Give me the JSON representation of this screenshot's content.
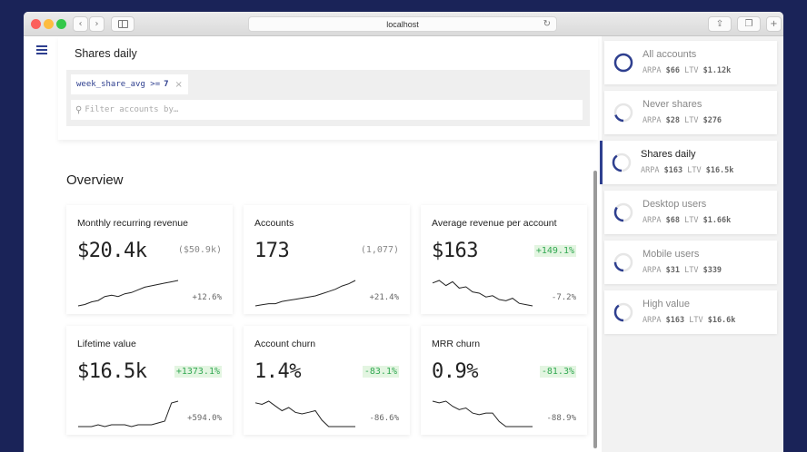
{
  "browser": {
    "url": "localhost",
    "back_icon": "chevron-left-icon",
    "forward_icon": "chevron-right-icon",
    "sidebar_icon": "sidebar-icon",
    "reload_icon": "reload-icon",
    "share_icon": "share-icon",
    "tabs_icon": "tabs-icon",
    "new_tab_icon": "plus-icon"
  },
  "segment_header": {
    "title": "Shares daily",
    "filter_chip": {
      "field": "week_share_avg >=",
      "value": "7",
      "remove": "×"
    },
    "search_placeholder": "Filter accounts by…"
  },
  "overview": {
    "title": "Overview",
    "metrics": [
      {
        "title": "Monthly recurring revenue",
        "value": "$20.4k",
        "compare": "($50.9k)",
        "trend": "+12.6%",
        "sparkline": [
          2,
          3,
          5,
          6,
          9,
          10,
          9,
          11,
          12,
          14,
          16,
          17,
          18,
          19,
          20,
          21
        ]
      },
      {
        "title": "Accounts",
        "value": "173",
        "compare": "(1,077)",
        "trend": "+21.4%",
        "sparkline": [
          1,
          2,
          3,
          3,
          5,
          6,
          7,
          8,
          9,
          10,
          12,
          14,
          16,
          19,
          21,
          24
        ]
      },
      {
        "title": "Average revenue per account",
        "value": "$163",
        "compare": "+149.1%",
        "trend": "-7.2%",
        "sparkline": [
          20,
          22,
          18,
          21,
          16,
          17,
          13,
          12,
          9,
          10,
          7,
          6,
          8,
          4,
          3,
          2
        ]
      },
      {
        "title": "Lifetime value",
        "value": "$16.5k",
        "compare": "+1373.1%",
        "trend": "+594.0%",
        "sparkline": [
          1,
          1,
          1,
          2,
          1,
          2,
          2,
          2,
          1,
          2,
          2,
          2,
          3,
          4,
          14,
          15
        ]
      },
      {
        "title": "Account churn",
        "value": "1.4%",
        "compare": "-83.1%",
        "trend": "-86.6%",
        "sparkline": [
          17,
          16,
          18,
          15,
          12,
          14,
          11,
          10,
          11,
          12,
          6,
          2,
          2,
          2,
          2,
          2
        ]
      },
      {
        "title": "MRR churn",
        "value": "0.9%",
        "compare": "-81.3%",
        "trend": "-88.9%",
        "sparkline": [
          17,
          16,
          17,
          14,
          12,
          13,
          10,
          9,
          10,
          10,
          5,
          2,
          2,
          2,
          2,
          2
        ]
      }
    ]
  },
  "segments": [
    {
      "name": "All accounts",
      "arpa_label": "ARPA",
      "arpa": "$66",
      "ltv_label": "LTV",
      "ltv": "$1.12k",
      "fill": 1.0,
      "active": false
    },
    {
      "name": "Never shares",
      "arpa_label": "ARPA",
      "arpa": "$28",
      "ltv_label": "LTV",
      "ltv": "$276",
      "fill": 0.2,
      "active": false
    },
    {
      "name": "Shares daily",
      "arpa_label": "ARPA",
      "arpa": "$163",
      "ltv_label": "LTV",
      "ltv": "$16.5k",
      "fill": 0.4,
      "active": true
    },
    {
      "name": "Desktop users",
      "arpa_label": "ARPA",
      "arpa": "$68",
      "ltv_label": "LTV",
      "ltv": "$1.66k",
      "fill": 0.35,
      "active": false
    },
    {
      "name": "Mobile users",
      "arpa_label": "ARPA",
      "arpa": "$31",
      "ltv_label": "LTV",
      "ltv": "$339",
      "fill": 0.25,
      "active": false
    },
    {
      "name": "High value",
      "arpa_label": "ARPA",
      "arpa": "$163",
      "ltv_label": "LTV",
      "ltv": "$16.6k",
      "fill": 0.4,
      "active": false
    }
  ],
  "colors": {
    "accent": "#2e3f8f",
    "positive": "#32a852",
    "positive_bg": "#e3f5e1",
    "background": "#1a2358"
  }
}
